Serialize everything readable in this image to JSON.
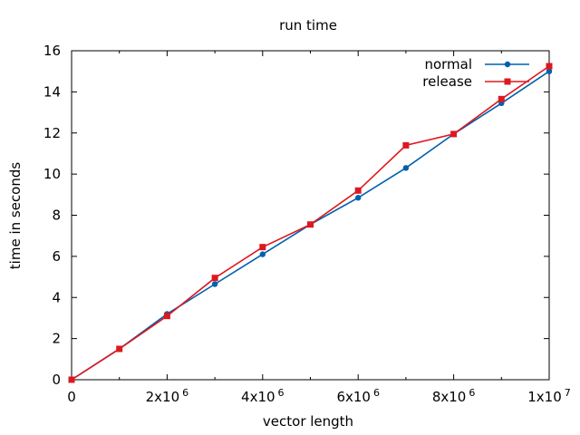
{
  "chart_data": {
    "type": "line",
    "title": "run time",
    "xlabel": "vector length",
    "ylabel": "time in seconds",
    "xlim": [
      0,
      10000000
    ],
    "ylim": [
      0,
      16
    ],
    "grid": false,
    "legend_position": "top-right",
    "x_ticks": [
      {
        "value": 0,
        "base": "0",
        "exp": ""
      },
      {
        "value": 2000000,
        "base": "2x10",
        "exp": "6"
      },
      {
        "value": 4000000,
        "base": "4x10",
        "exp": "6"
      },
      {
        "value": 6000000,
        "base": "6x10",
        "exp": "6"
      },
      {
        "value": 8000000,
        "base": "8x10",
        "exp": "6"
      },
      {
        "value": 10000000,
        "base": "1x10",
        "exp": "7"
      }
    ],
    "y_ticks": [
      0,
      2,
      4,
      6,
      8,
      10,
      12,
      14,
      16
    ],
    "x": [
      0,
      1000000,
      2000000,
      3000000,
      4000000,
      5000000,
      6000000,
      7000000,
      8000000,
      9000000,
      10000000
    ],
    "series": [
      {
        "name": "normal",
        "color": "#0060ad",
        "marker": "circle",
        "values": [
          0,
          1.5,
          3.2,
          4.65,
          6.1,
          7.55,
          8.85,
          10.3,
          11.95,
          13.45,
          15.0
        ]
      },
      {
        "name": "release",
        "color": "#dd181f",
        "marker": "square",
        "values": [
          0,
          1.5,
          3.1,
          4.95,
          6.45,
          7.55,
          9.2,
          11.4,
          11.95,
          13.65,
          15.25
        ]
      }
    ]
  }
}
